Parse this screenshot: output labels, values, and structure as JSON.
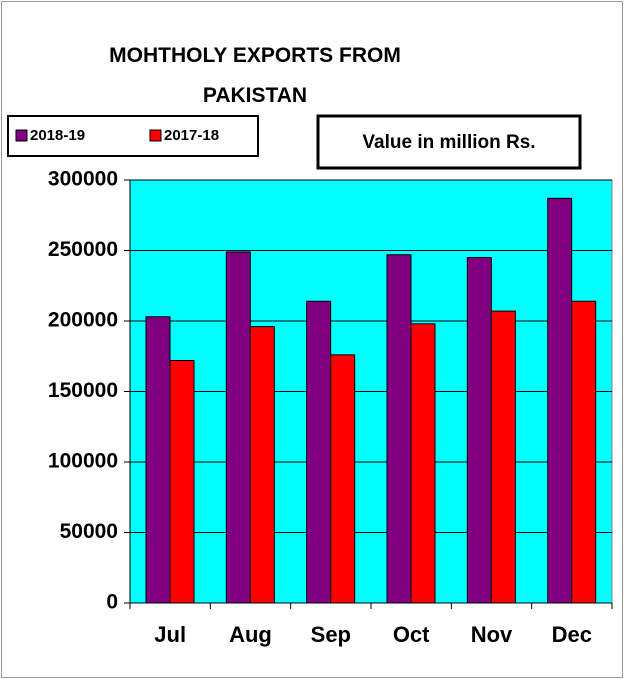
{
  "chart_data": {
    "type": "bar",
    "title": "MOHTHOLY EXPORTS FROM PAKISTAN",
    "annotation": "Value in  million Rs.",
    "categories": [
      "Jul",
      "Aug",
      "Sep",
      "Oct",
      "Nov",
      "Dec"
    ],
    "series": [
      {
        "name": "2018-19",
        "color": "#800080",
        "values": [
          203000,
          249000,
          214000,
          247000,
          245000,
          287000
        ]
      },
      {
        "name": "2017-18",
        "color": "#ff0000",
        "values": [
          172000,
          196000,
          176000,
          198000,
          207000,
          214000
        ]
      }
    ],
    "ylim": [
      0,
      300000
    ],
    "yticks": [
      0,
      50000,
      100000,
      150000,
      200000,
      250000,
      300000
    ],
    "grid": true,
    "plot_background": "#00ffff",
    "legend": "top-left"
  }
}
